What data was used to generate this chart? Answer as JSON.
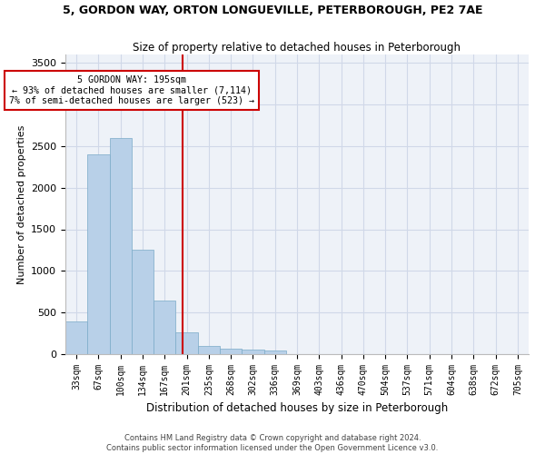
{
  "title": "5, GORDON WAY, ORTON LONGUEVILLE, PETERBOROUGH, PE2 7AE",
  "subtitle": "Size of property relative to detached houses in Peterborough",
  "xlabel": "Distribution of detached houses by size in Peterborough",
  "ylabel": "Number of detached properties",
  "footer_line1": "Contains HM Land Registry data © Crown copyright and database right 2024.",
  "footer_line2": "Contains public sector information licensed under the Open Government Licence v3.0.",
  "bin_labels": [
    "33sqm",
    "67sqm",
    "100sqm",
    "134sqm",
    "167sqm",
    "201sqm",
    "235sqm",
    "268sqm",
    "302sqm",
    "336sqm",
    "369sqm",
    "403sqm",
    "436sqm",
    "470sqm",
    "504sqm",
    "537sqm",
    "571sqm",
    "604sqm",
    "638sqm",
    "672sqm",
    "705sqm"
  ],
  "bar_values": [
    390,
    2400,
    2600,
    1250,
    640,
    260,
    100,
    65,
    60,
    45,
    5,
    2,
    2,
    1,
    1,
    0,
    0,
    0,
    0,
    0,
    0
  ],
  "bar_color": "#b8d0e8",
  "bar_edge_color": "#7aaac8",
  "grid_color": "#d0d8e8",
  "bg_color": "#eef2f8",
  "property_label": "5 GORDON WAY: 195sqm",
  "stat_line1": "← 93% of detached houses are smaller (7,114)",
  "stat_line2": "7% of semi-detached houses are larger (523) →",
  "vline_color": "#cc0000",
  "annotation_box_color": "#cc0000",
  "ylim": [
    0,
    3600
  ],
  "yticks": [
    0,
    500,
    1000,
    1500,
    2000,
    2500,
    3000,
    3500
  ]
}
